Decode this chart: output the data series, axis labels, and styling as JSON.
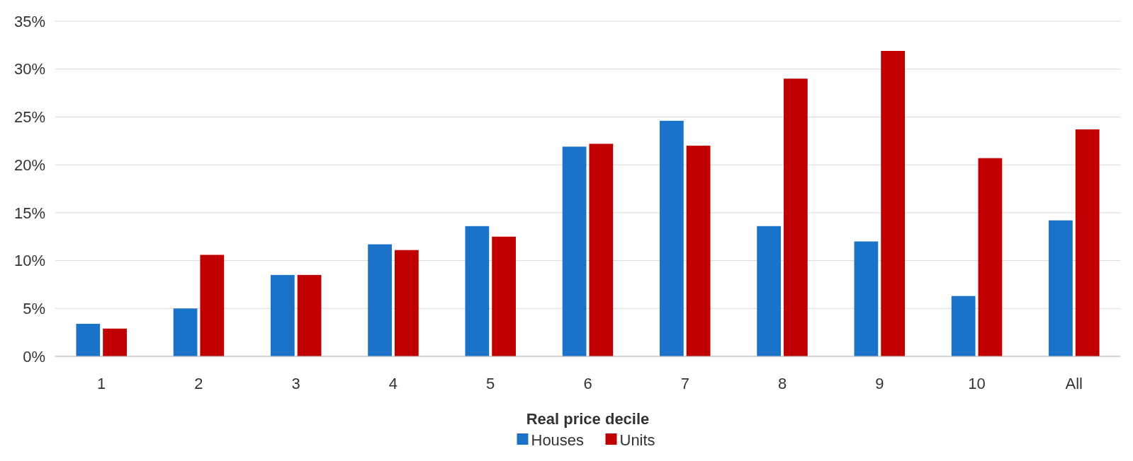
{
  "chart_data": {
    "type": "bar",
    "xlabel": "Real price decile",
    "categories": [
      "1",
      "2",
      "3",
      "4",
      "5",
      "6",
      "7",
      "8",
      "9",
      "10",
      "All"
    ],
    "series": [
      {
        "name": "Houses",
        "color": "#1a73c8",
        "values": [
          3.4,
          5.0,
          8.5,
          11.7,
          13.6,
          21.9,
          24.6,
          13.6,
          12.0,
          6.3,
          14.2
        ]
      },
      {
        "name": "Units",
        "color": "#c00000",
        "values": [
          2.9,
          10.6,
          8.5,
          11.1,
          12.5,
          22.2,
          22.0,
          29.0,
          31.9,
          20.7,
          23.7
        ]
      }
    ],
    "ylim": [
      0,
      35
    ],
    "yticks": [
      {
        "value": 0,
        "label": "0%"
      },
      {
        "value": 5,
        "label": "5%"
      },
      {
        "value": 10,
        "label": "10%"
      },
      {
        "value": 15,
        "label": "15%"
      },
      {
        "value": 20,
        "label": "20%"
      },
      {
        "value": 25,
        "label": "25%"
      },
      {
        "value": 30,
        "label": "30%"
      },
      {
        "value": 35,
        "label": "35%"
      }
    ],
    "grid": "y",
    "legend": "bottom"
  }
}
